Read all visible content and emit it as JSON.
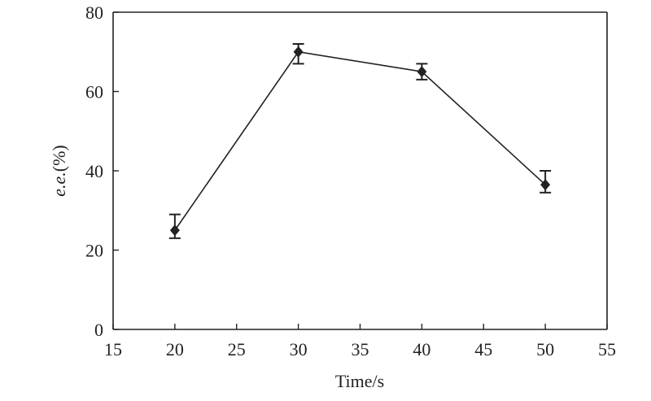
{
  "chart_data": {
    "type": "line",
    "xlabel": "Time/s",
    "ylabel_italic": "e.e.",
    "ylabel_suffix": "(%)",
    "xlim": [
      15,
      55
    ],
    "ylim": [
      0,
      80
    ],
    "xticks": [
      15,
      20,
      25,
      30,
      35,
      40,
      45,
      50,
      55
    ],
    "yticks": [
      0,
      20,
      40,
      60,
      80
    ],
    "grid": false,
    "marker": "diamond",
    "colors": {
      "line": "#222222"
    },
    "series": [
      {
        "points": [
          {
            "x": 20,
            "y": 25,
            "err_lo": 2,
            "err_hi": 4
          },
          {
            "x": 30,
            "y": 70,
            "err_lo": 3,
            "err_hi": 2
          },
          {
            "x": 40,
            "y": 65,
            "err_lo": 2,
            "err_hi": 2
          },
          {
            "x": 50,
            "y": 36.5,
            "err_lo": 2,
            "err_hi": 3.5
          }
        ]
      }
    ]
  }
}
